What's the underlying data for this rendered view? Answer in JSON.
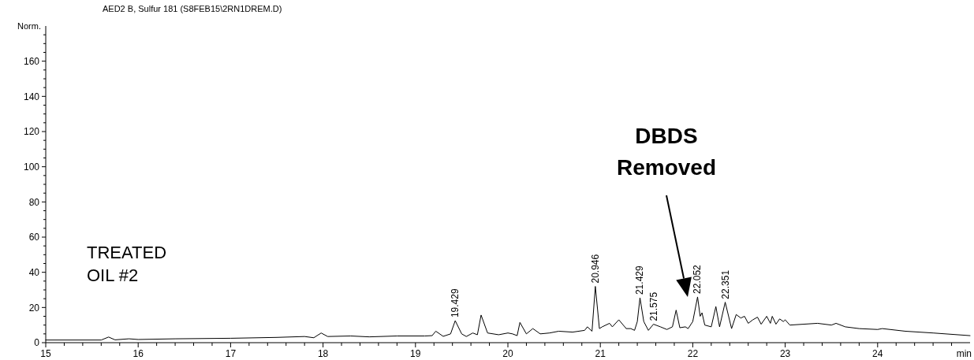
{
  "chart_data": {
    "type": "line",
    "title": "AED2 B, Sulfur 181 (S8FEB15\\2RN1DREM.D)",
    "ylabel": "Norm.",
    "xlabel": "min",
    "x": [
      15,
      15.6,
      15.68,
      15.75,
      15.9,
      16.0,
      16.4,
      17.0,
      17.5,
      17.8,
      17.9,
      17.98,
      18.05,
      18.3,
      18.5,
      18.8,
      19.1,
      19.18,
      19.22,
      19.3,
      19.38,
      19.43,
      19.5,
      19.55,
      19.62,
      19.67,
      19.71,
      19.78,
      19.9,
      20.0,
      20.05,
      20.1,
      20.13,
      20.2,
      20.27,
      20.35,
      20.45,
      20.55,
      20.7,
      20.83,
      20.86,
      20.91,
      20.946,
      20.99,
      21.02,
      21.1,
      21.13,
      21.2,
      21.28,
      21.33,
      21.37,
      21.4,
      21.429,
      21.47,
      21.52,
      21.575,
      21.65,
      21.72,
      21.78,
      21.82,
      21.86,
      21.92,
      21.95,
      22.0,
      22.052,
      22.08,
      22.1,
      22.13,
      22.2,
      22.25,
      22.29,
      22.351,
      22.42,
      22.47,
      22.52,
      22.56,
      22.6,
      22.65,
      22.7,
      22.74,
      22.8,
      22.84,
      22.86,
      22.9,
      22.94,
      22.98,
      23.0,
      23.05,
      23.2,
      23.35,
      23.5,
      23.55,
      23.65,
      23.8,
      24.0,
      24.05,
      24.3,
      24.6,
      25.0
    ],
    "series": [
      {
        "color": "#000000",
        "values": [
          1.5,
          1.5,
          3.2,
          1.6,
          2.2,
          1.8,
          2.2,
          2.5,
          3,
          3.5,
          2.8,
          5.5,
          3.5,
          3.8,
          3.3,
          3.8,
          3.8,
          4,
          6.5,
          3.6,
          5,
          12.5,
          5,
          3.5,
          5.5,
          4.5,
          15.7,
          5.5,
          4.5,
          5.5,
          5,
          4,
          11.5,
          5,
          8,
          5,
          5.5,
          6.5,
          6,
          7,
          9,
          6.5,
          32,
          8,
          9,
          11,
          9,
          13,
          8,
          8,
          7,
          12,
          25.5,
          12,
          7,
          10.5,
          9,
          7.5,
          9,
          18.5,
          8.5,
          9,
          8,
          12,
          26,
          15,
          17,
          10,
          9,
          20.5,
          9,
          23,
          8,
          16,
          14,
          15,
          11,
          13,
          14.5,
          10.5,
          15,
          11,
          15,
          10.5,
          13.5,
          12,
          13,
          10,
          10.5,
          11,
          10,
          11,
          9,
          8,
          7.5,
          8,
          6.5,
          5.5,
          4
        ]
      }
    ],
    "xlim": [
      15,
      25
    ],
    "ylim": [
      0,
      180
    ],
    "xticks": [
      15,
      {
        "value": 15.2,
        "label": null
      },
      {
        "value": 15.4,
        "label": null
      },
      {
        "value": 15.6,
        "label": null
      },
      {
        "value": 15.8,
        "label": null
      },
      16,
      {
        "value": 16.2,
        "label": null
      },
      {
        "value": 16.4,
        "label": null
      },
      {
        "value": 16.6,
        "label": null
      },
      {
        "value": 16.8,
        "label": null
      },
      17,
      {
        "value": 17.2,
        "label": null
      },
      {
        "value": 17.4,
        "label": null
      },
      {
        "value": 17.6,
        "label": null
      },
      {
        "value": 17.8,
        "label": null
      },
      18,
      {
        "value": 18.2,
        "label": null
      },
      {
        "value": 18.4,
        "label": null
      },
      {
        "value": 18.6,
        "label": null
      },
      {
        "value": 18.8,
        "label": null
      },
      19,
      {
        "value": 19.2,
        "label": null
      },
      {
        "value": 19.4,
        "label": null
      },
      {
        "value": 19.6,
        "label": null
      },
      {
        "value": 19.8,
        "label": null
      },
      20,
      {
        "value": 20.2,
        "label": null
      },
      {
        "value": 20.4,
        "label": null
      },
      {
        "value": 20.6,
        "label": null
      },
      {
        "value": 20.8,
        "label": null
      },
      21,
      {
        "value": 21.2,
        "label": null
      },
      {
        "value": 21.4,
        "label": null
      },
      {
        "value": 21.6,
        "label": null
      },
      {
        "value": 21.8,
        "label": null
      },
      22,
      {
        "value": 22.2,
        "label": null
      },
      {
        "value": 22.4,
        "label": null
      },
      {
        "value": 22.6,
        "label": null
      },
      {
        "value": 22.8,
        "label": null
      },
      23,
      {
        "value": 23.2,
        "label": null
      },
      {
        "value": 23.4,
        "label": null
      },
      {
        "value": 23.6,
        "label": null
      },
      {
        "value": 23.8,
        "label": null
      },
      24,
      {
        "value": 24.2,
        "label": null
      },
      {
        "value": 24.4,
        "label": null
      },
      {
        "value": 24.6,
        "label": null
      },
      {
        "value": 24.8,
        "label": null
      }
    ],
    "yticks": [
      0,
      {
        "value": 5,
        "label": null
      },
      {
        "value": 10,
        "label": null
      },
      {
        "value": 15,
        "label": null
      },
      20,
      {
        "value": 25,
        "label": null
      },
      {
        "value": 30,
        "label": null
      },
      {
        "value": 35,
        "label": null
      },
      40,
      {
        "value": 45,
        "label": null
      },
      {
        "value": 50,
        "label": null
      },
      {
        "value": 55,
        "label": null
      },
      60,
      {
        "value": 65,
        "label": null
      },
      {
        "value": 70,
        "label": null
      },
      {
        "value": 75,
        "label": null
      },
      80,
      {
        "value": 85,
        "label": null
      },
      {
        "value": 90,
        "label": null
      },
      {
        "value": 95,
        "label": null
      },
      100,
      {
        "value": 105,
        "label": null
      },
      {
        "value": 110,
        "label": null
      },
      {
        "value": 115,
        "label": null
      },
      120,
      {
        "value": 125,
        "label": null
      },
      {
        "value": 130,
        "label": null
      },
      {
        "value": 135,
        "label": null
      },
      140,
      {
        "value": 145,
        "label": null
      },
      {
        "value": 150,
        "label": null
      },
      {
        "value": 155,
        "label": null
      },
      160,
      {
        "value": 165,
        "label": null
      },
      {
        "value": 170,
        "label": null
      },
      {
        "value": 175,
        "label": null
      }
    ],
    "grid": false,
    "marker": "none",
    "line_style": "solid",
    "annotations": [
      "TREATED\nOIL #2",
      {
        "text": "19.429",
        "x": 19.43,
        "y": 12.5
      },
      {
        "text": "20.946",
        "x": 20.946,
        "y": 32
      },
      {
        "text": "21.429",
        "x": 21.429,
        "y": 25.5
      },
      {
        "text": "21.575",
        "x": 21.575,
        "y": 10.5
      },
      {
        "text": "22.052",
        "x": 22.052,
        "y": 26
      },
      {
        "text": "22.351",
        "x": 22.351,
        "y": 23
      },
      "DBDS\nRemoved"
    ]
  }
}
